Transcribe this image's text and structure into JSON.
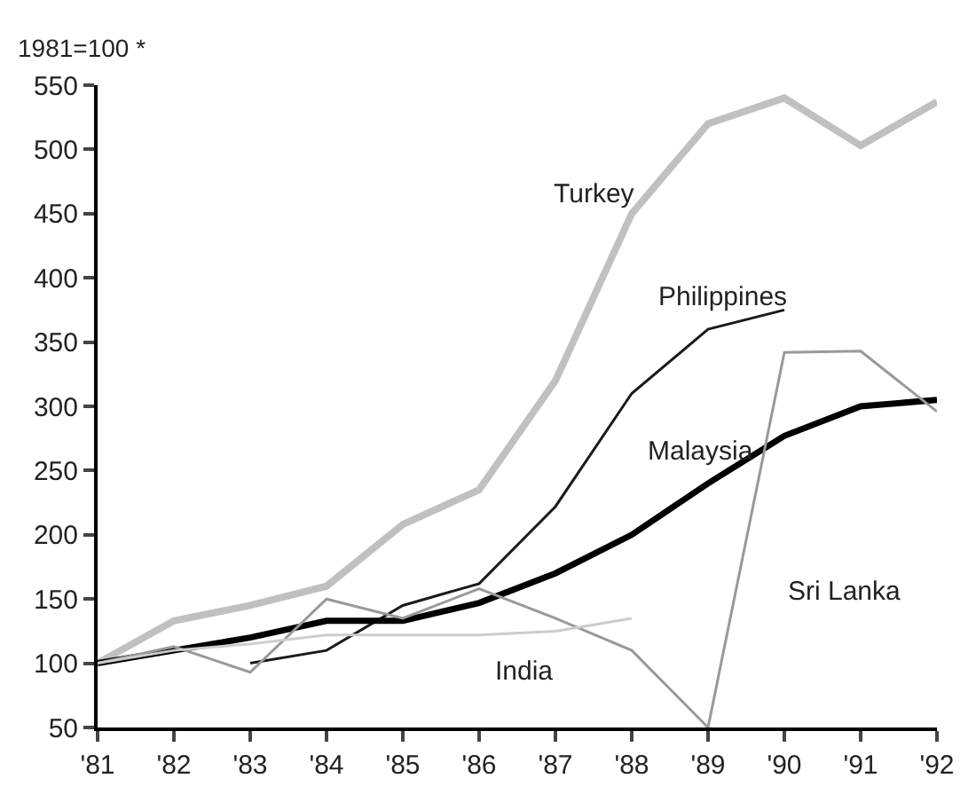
{
  "chart_data": {
    "type": "line",
    "ylabel": "1981=100 *",
    "categories": [
      "'81",
      "'82",
      "'83",
      "'84",
      "'85",
      "'86",
      "'87",
      "'88",
      "'89",
      "'90",
      "'91",
      "'92"
    ],
    "ylim": [
      50,
      550
    ],
    "yticks": [
      50,
      100,
      150,
      200,
      250,
      300,
      350,
      400,
      450,
      500,
      550
    ],
    "legend": false,
    "marker": "none",
    "line_style": "solid",
    "series": [
      {
        "name": "Turkey",
        "color": "#c0c0c0",
        "values": [
          100,
          133,
          145,
          160,
          208,
          235,
          320,
          450,
          520,
          540,
          503,
          537
        ]
      },
      {
        "name": "Philippines",
        "color": "#1a1a1a",
        "values": [
          null,
          null,
          100,
          110,
          145,
          162,
          222,
          310,
          360,
          375,
          null,
          null
        ]
      },
      {
        "name": "Malaysia",
        "color": "#000000",
        "values": [
          100,
          110,
          120,
          133,
          133,
          147,
          170,
          200,
          240,
          277,
          300,
          305
        ]
      },
      {
        "name": "Sri Lanka",
        "color": "#999999",
        "values": [
          100,
          113,
          93,
          150,
          135,
          158,
          135,
          110,
          50,
          342,
          343,
          296
        ]
      },
      {
        "name": "India",
        "color": "#cccccc",
        "values": [
          100,
          110,
          115,
          122,
          122,
          122,
          125,
          135,
          null,
          null,
          null,
          null
        ]
      }
    ]
  }
}
